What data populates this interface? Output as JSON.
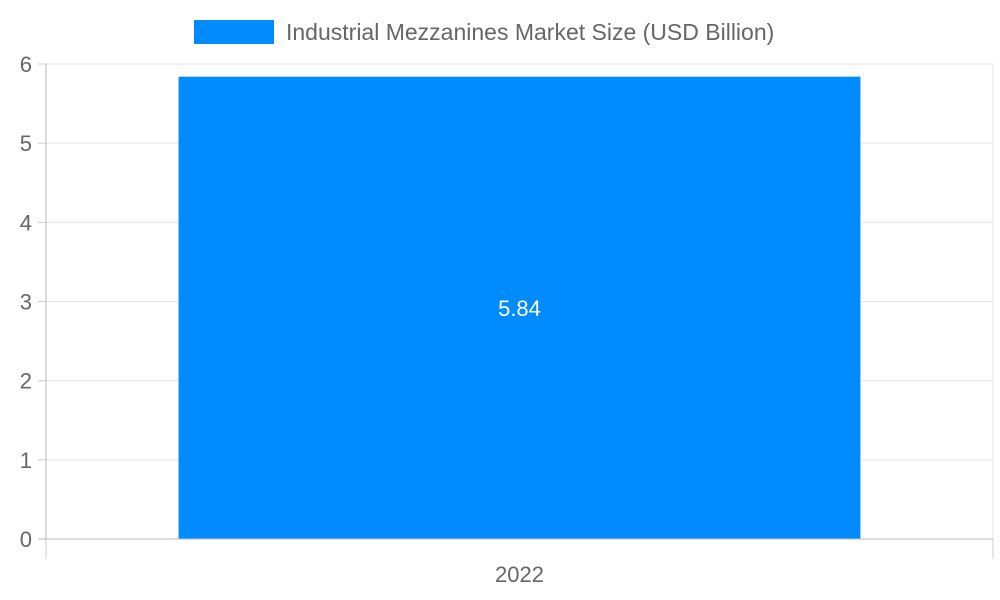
{
  "chart_data": {
    "type": "bar",
    "categories": [
      "2022"
    ],
    "series": [
      {
        "name": "Industrial Mezzanines Market Size (USD Billion)",
        "values": [
          5.84
        ],
        "color": "#008cff"
      }
    ],
    "data_labels": [
      "5.84"
    ],
    "ylim": [
      0,
      6
    ],
    "yticks": [
      "0",
      "1",
      "2",
      "3",
      "4",
      "5",
      "6"
    ],
    "grid": true,
    "legend_position": "top"
  }
}
